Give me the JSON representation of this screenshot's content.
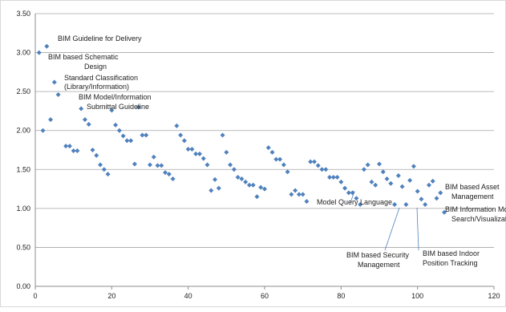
{
  "chart_data": {
    "type": "scatter",
    "title": "",
    "xlabel": "",
    "ylabel": "",
    "xlim": [
      0,
      120
    ],
    "ylim": [
      0,
      3.5
    ],
    "x_ticks": [
      0,
      20,
      40,
      60,
      80,
      100,
      120
    ],
    "y_ticks": [
      "0.00",
      "0.50",
      "1.00",
      "1.50",
      "2.00",
      "2.50",
      "3.00",
      "3.50"
    ],
    "grid": "horizontal",
    "marker_color": "#4f81bd",
    "series": [
      {
        "points": [
          [
            1,
            3.0
          ],
          [
            2,
            2.0
          ],
          [
            3,
            3.08
          ],
          [
            4,
            2.14
          ],
          [
            5,
            2.62
          ],
          [
            6,
            2.46
          ],
          [
            8,
            1.8
          ],
          [
            9,
            1.8
          ],
          [
            10,
            1.74
          ],
          [
            11,
            1.74
          ],
          [
            12,
            2.28
          ],
          [
            13,
            2.14
          ],
          [
            14,
            2.08
          ],
          [
            15,
            1.75
          ],
          [
            16,
            1.68
          ],
          [
            17,
            1.56
          ],
          [
            18,
            1.5
          ],
          [
            19,
            1.44
          ],
          [
            20,
            2.26
          ],
          [
            21,
            2.07
          ],
          [
            22,
            2.0
          ],
          [
            23,
            1.93
          ],
          [
            24,
            1.87
          ],
          [
            25,
            1.87
          ],
          [
            26,
            1.57
          ],
          [
            27,
            2.3
          ],
          [
            28,
            1.94
          ],
          [
            29,
            1.94
          ],
          [
            30,
            1.56
          ],
          [
            31,
            1.66
          ],
          [
            32,
            1.55
          ],
          [
            33,
            1.55
          ],
          [
            34,
            1.46
          ],
          [
            35,
            1.44
          ],
          [
            36,
            1.38
          ],
          [
            37,
            2.06
          ],
          [
            38,
            1.94
          ],
          [
            39,
            1.87
          ],
          [
            40,
            1.76
          ],
          [
            41,
            1.76
          ],
          [
            42,
            1.7
          ],
          [
            43,
            1.7
          ],
          [
            44,
            1.64
          ],
          [
            45,
            1.56
          ],
          [
            46,
            1.23
          ],
          [
            47,
            1.37
          ],
          [
            48,
            1.26
          ],
          [
            49,
            1.94
          ],
          [
            50,
            1.72
          ],
          [
            51,
            1.56
          ],
          [
            52,
            1.5
          ],
          [
            53,
            1.4
          ],
          [
            54,
            1.38
          ],
          [
            55,
            1.34
          ],
          [
            56,
            1.3
          ],
          [
            57,
            1.3
          ],
          [
            58,
            1.15
          ],
          [
            59,
            1.27
          ],
          [
            60,
            1.25
          ],
          [
            61,
            1.78
          ],
          [
            62,
            1.72
          ],
          [
            63,
            1.63
          ],
          [
            64,
            1.63
          ],
          [
            65,
            1.56
          ],
          [
            66,
            1.47
          ],
          [
            67,
            1.18
          ],
          [
            68,
            1.23
          ],
          [
            69,
            1.18
          ],
          [
            70,
            1.18
          ],
          [
            71,
            1.09
          ],
          [
            72,
            1.6
          ],
          [
            73,
            1.6
          ],
          [
            74,
            1.55
          ],
          [
            75,
            1.5
          ],
          [
            76,
            1.5
          ],
          [
            77,
            1.4
          ],
          [
            78,
            1.4
          ],
          [
            79,
            1.4
          ],
          [
            80,
            1.34
          ],
          [
            81,
            1.26
          ],
          [
            82,
            1.2
          ],
          [
            83,
            1.2
          ],
          [
            84,
            1.13
          ],
          [
            85,
            1.05
          ],
          [
            86,
            1.5
          ],
          [
            87,
            1.56
          ],
          [
            88,
            1.34
          ],
          [
            89,
            1.3
          ],
          [
            90,
            1.57
          ],
          [
            91,
            1.47
          ],
          [
            92,
            1.38
          ],
          [
            93,
            1.32
          ],
          [
            94,
            1.05
          ],
          [
            95,
            1.42
          ],
          [
            96,
            1.28
          ],
          [
            97,
            1.05
          ],
          [
            98,
            1.36
          ],
          [
            99,
            1.54
          ],
          [
            100,
            1.22
          ],
          [
            101,
            1.12
          ],
          [
            102,
            1.05
          ],
          [
            103,
            1.3
          ],
          [
            104,
            1.35
          ],
          [
            105,
            1.13
          ],
          [
            106,
            1.2
          ],
          [
            107,
            0.95
          ]
        ]
      }
    ],
    "annotations": [
      {
        "lines": [
          "BIM Guideline for Delivery"
        ],
        "x": 3,
        "y": 3.08
      },
      {
        "lines": [
          "BIM based Schematic",
          "Design"
        ],
        "x": 1,
        "y": 3.0
      },
      {
        "lines": [
          "Standard Classification",
          "(Library/Information)"
        ],
        "x": 5,
        "y": 2.62
      },
      {
        "lines": [
          "BIM Model/Information",
          "Submittal Guideline"
        ],
        "x": 12,
        "y": 2.28
      },
      {
        "lines": [
          "Model Query Language"
        ],
        "x": 85,
        "y": 1.05
      },
      {
        "lines": [
          "BIM based Security",
          "Management"
        ],
        "x": 96,
        "y": 1.05
      },
      {
        "lines": [
          "BIM based Indoor",
          "Position Tracking"
        ],
        "x": 102,
        "y": 1.05
      },
      {
        "lines": [
          "BIM Information Mobile",
          "Search/Visualization"
        ],
        "x": 102,
        "y": 1.05
      },
      {
        "lines": [
          "BIM based Asset",
          "Management"
        ],
        "x": 107,
        "y": 0.95
      }
    ]
  }
}
